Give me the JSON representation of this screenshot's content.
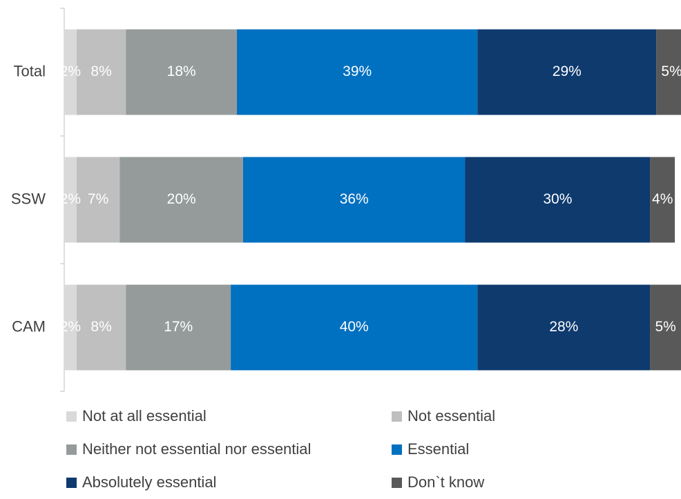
{
  "chart_data": {
    "type": "bar",
    "orientation": "horizontal",
    "stacked": true,
    "categories": [
      "Total",
      "SSW",
      "CAM"
    ],
    "series": [
      {
        "name": "Not at all essential",
        "color": "#d9d9d9",
        "values": [
          2,
          2,
          2
        ],
        "labels": [
          "2%",
          "2%",
          "2%"
        ]
      },
      {
        "name": "Not essential",
        "color": "#bfbfbf",
        "values": [
          8,
          7,
          8
        ],
        "labels": [
          "8%",
          "7%",
          "8%"
        ]
      },
      {
        "name": "Neither not essential nor essential",
        "color": "#959b9b",
        "values": [
          18,
          20,
          17
        ],
        "labels": [
          "18%",
          "20%",
          "17%"
        ]
      },
      {
        "name": "Essential",
        "color": "#0070c0",
        "values": [
          39,
          36,
          40
        ],
        "labels": [
          "39%",
          "36%",
          "40%"
        ]
      },
      {
        "name": "Absolutely essential",
        "color": "#0e3a6e",
        "values": [
          29,
          30,
          28
        ],
        "labels": [
          "29%",
          "30%",
          "28%"
        ]
      },
      {
        "name": "Don`t know",
        "color": "#595959",
        "values": [
          5,
          4,
          5
        ],
        "labels": [
          "5%",
          "4%",
          "5%"
        ]
      }
    ],
    "xlim": [
      0,
      100
    ],
    "grid": false,
    "legend_position": "bottom"
  }
}
